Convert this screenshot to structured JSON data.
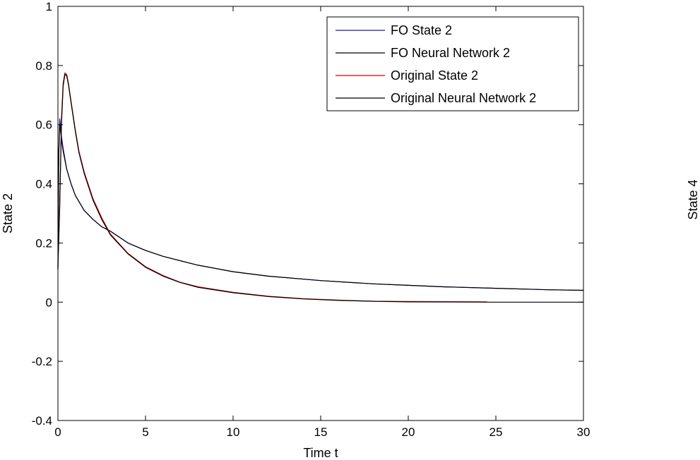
{
  "chart_data": {
    "type": "line",
    "xlabel": "Time t",
    "ylabel": "State 2",
    "right_label": "State 4",
    "xlim": [
      0,
      30
    ],
    "ylim": [
      -0.4,
      1
    ],
    "xticks": [
      0,
      5,
      10,
      15,
      20,
      25,
      30
    ],
    "yticks": [
      -0.4,
      -0.2,
      0,
      0.2,
      0.4,
      0.6,
      0.8,
      1
    ],
    "ytick_labels": [
      "-0.4",
      "-0.2",
      "0",
      "0.2",
      "0.4",
      "0.6",
      "0.8",
      "1"
    ],
    "grid": false,
    "legend_position": "top-right",
    "series": [
      {
        "name": "FO State 2",
        "color": "#1a1aa8",
        "x": [
          0,
          0.05,
          0.1,
          0.15,
          0.2,
          0.3,
          0.5,
          0.75,
          1,
          1.5,
          2,
          2.5,
          3,
          4,
          5,
          6,
          8,
          10,
          12,
          15,
          18,
          20,
          22,
          25,
          28,
          30
        ],
        "y": [
          0.11,
          0.5,
          0.62,
          0.6,
          0.56,
          0.52,
          0.45,
          0.4,
          0.36,
          0.31,
          0.28,
          0.255,
          0.24,
          0.2,
          0.175,
          0.155,
          0.125,
          0.103,
          0.088,
          0.073,
          0.062,
          0.057,
          0.052,
          0.047,
          0.042,
          0.04
        ]
      },
      {
        "name": "FO Neural Network 2",
        "color": "#000000",
        "x": [
          0,
          0.05,
          0.1,
          0.15,
          0.2,
          0.3,
          0.5,
          0.75,
          1,
          1.5,
          2,
          2.5,
          3,
          4,
          5,
          6,
          8,
          10,
          12,
          15,
          18,
          20,
          22,
          25,
          28,
          30
        ],
        "y": [
          0.11,
          0.5,
          0.6,
          0.58,
          0.55,
          0.51,
          0.45,
          0.4,
          0.36,
          0.31,
          0.28,
          0.255,
          0.24,
          0.2,
          0.175,
          0.155,
          0.125,
          0.103,
          0.088,
          0.073,
          0.062,
          0.057,
          0.052,
          0.047,
          0.042,
          0.04
        ]
      },
      {
        "name": "Original State 2",
        "color": "#cc0000",
        "x": [
          0,
          0.1,
          0.2,
          0.3,
          0.4,
          0.5,
          0.6,
          0.8,
          1,
          1.2,
          1.5,
          2,
          2.5,
          3,
          4,
          5,
          6,
          7,
          8,
          10,
          12,
          14,
          16,
          18,
          20,
          24.5
        ],
        "y": [
          0.12,
          0.32,
          0.62,
          0.74,
          0.775,
          0.77,
          0.74,
          0.66,
          0.58,
          0.51,
          0.44,
          0.35,
          0.285,
          0.23,
          0.165,
          0.12,
          0.09,
          0.067,
          0.052,
          0.033,
          0.02,
          0.012,
          0.007,
          0.003,
          0.002,
          0.001
        ]
      },
      {
        "name": "Original Neural Network 2",
        "color": "#000000",
        "x": [
          0,
          0.1,
          0.2,
          0.3,
          0.4,
          0.5,
          0.6,
          0.8,
          1,
          1.2,
          1.5,
          2,
          2.5,
          3,
          4,
          5,
          6,
          7,
          8,
          10,
          12,
          14,
          16,
          18,
          20,
          25,
          30
        ],
        "y": [
          0.12,
          0.32,
          0.6,
          0.73,
          0.77,
          0.765,
          0.735,
          0.655,
          0.575,
          0.505,
          0.435,
          0.345,
          0.28,
          0.227,
          0.163,
          0.118,
          0.088,
          0.066,
          0.05,
          0.032,
          0.019,
          0.011,
          0.006,
          0.003,
          0.001,
          0,
          0
        ]
      }
    ]
  }
}
